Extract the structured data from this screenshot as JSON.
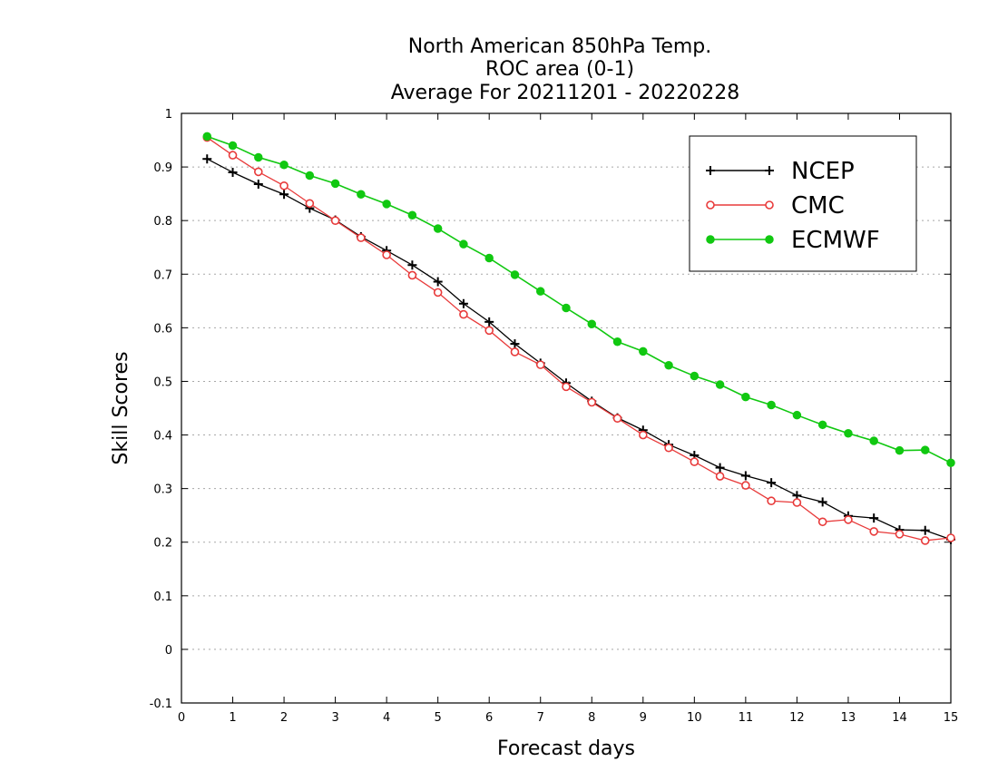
{
  "chart_data": {
    "type": "line",
    "title_lines": [
      "North American 850hPa Temp.",
      "ROC area (0-1)",
      "Average For 20211201 - 20220228"
    ],
    "xlabel": "Forecast days",
    "ylabel": "Skill Scores",
    "xlim": [
      0,
      15
    ],
    "ylim": [
      -0.1,
      1
    ],
    "xticks": [
      0,
      1,
      2,
      3,
      4,
      5,
      6,
      7,
      8,
      9,
      10,
      11,
      12,
      13,
      14,
      15
    ],
    "yticks": [
      -0.1,
      0,
      0.1,
      0.2,
      0.3,
      0.4,
      0.5,
      0.6,
      0.7,
      0.8,
      0.9,
      1
    ],
    "ytick_labels": [
      "-0.1",
      "0",
      "0.1",
      "0.2",
      "0.3",
      "0.4",
      "0.5",
      "0.6",
      "0.7",
      "0.8",
      "0.9",
      "1"
    ],
    "grid": "horizontal-dotted",
    "legend_position": "top-right",
    "x": [
      0.5,
      1,
      1.5,
      2,
      2.5,
      3,
      3.5,
      4,
      4.5,
      5,
      5.5,
      6,
      6.5,
      7,
      7.5,
      8,
      8.5,
      9,
      9.5,
      10,
      10.5,
      11,
      11.5,
      12,
      12.5,
      13,
      13.5,
      14,
      14.5,
      15
    ],
    "series": [
      {
        "name": "NCEP",
        "color": "#000000",
        "marker": "plus",
        "values": [
          0.915,
          0.89,
          0.868,
          0.849,
          0.823,
          0.801,
          0.77,
          0.744,
          0.717,
          0.686,
          0.645,
          0.611,
          0.57,
          0.534,
          0.497,
          0.463,
          0.432,
          0.409,
          0.382,
          0.362,
          0.339,
          0.324,
          0.311,
          0.287,
          0.275,
          0.249,
          0.245,
          0.223,
          0.222,
          0.205
        ]
      },
      {
        "name": "CMC",
        "color": "#e83a3a",
        "marker": "circle-open",
        "values": [
          0.955,
          0.922,
          0.891,
          0.865,
          0.832,
          0.8,
          0.768,
          0.736,
          0.698,
          0.666,
          0.625,
          0.595,
          0.555,
          0.531,
          0.49,
          0.461,
          0.431,
          0.4,
          0.376,
          0.35,
          0.323,
          0.306,
          0.277,
          0.274,
          0.238,
          0.242,
          0.22,
          0.215,
          0.203,
          0.208
        ]
      },
      {
        "name": "ECMWF",
        "color": "#11c811",
        "marker": "circle-filled",
        "values": [
          0.957,
          0.94,
          0.918,
          0.904,
          0.884,
          0.869,
          0.849,
          0.831,
          0.81,
          0.785,
          0.756,
          0.73,
          0.699,
          0.668,
          0.637,
          0.607,
          0.574,
          0.556,
          0.53,
          0.51,
          0.494,
          0.471,
          0.456,
          0.437,
          0.419,
          0.403,
          0.389,
          0.371,
          0.372,
          0.348
        ]
      }
    ]
  }
}
